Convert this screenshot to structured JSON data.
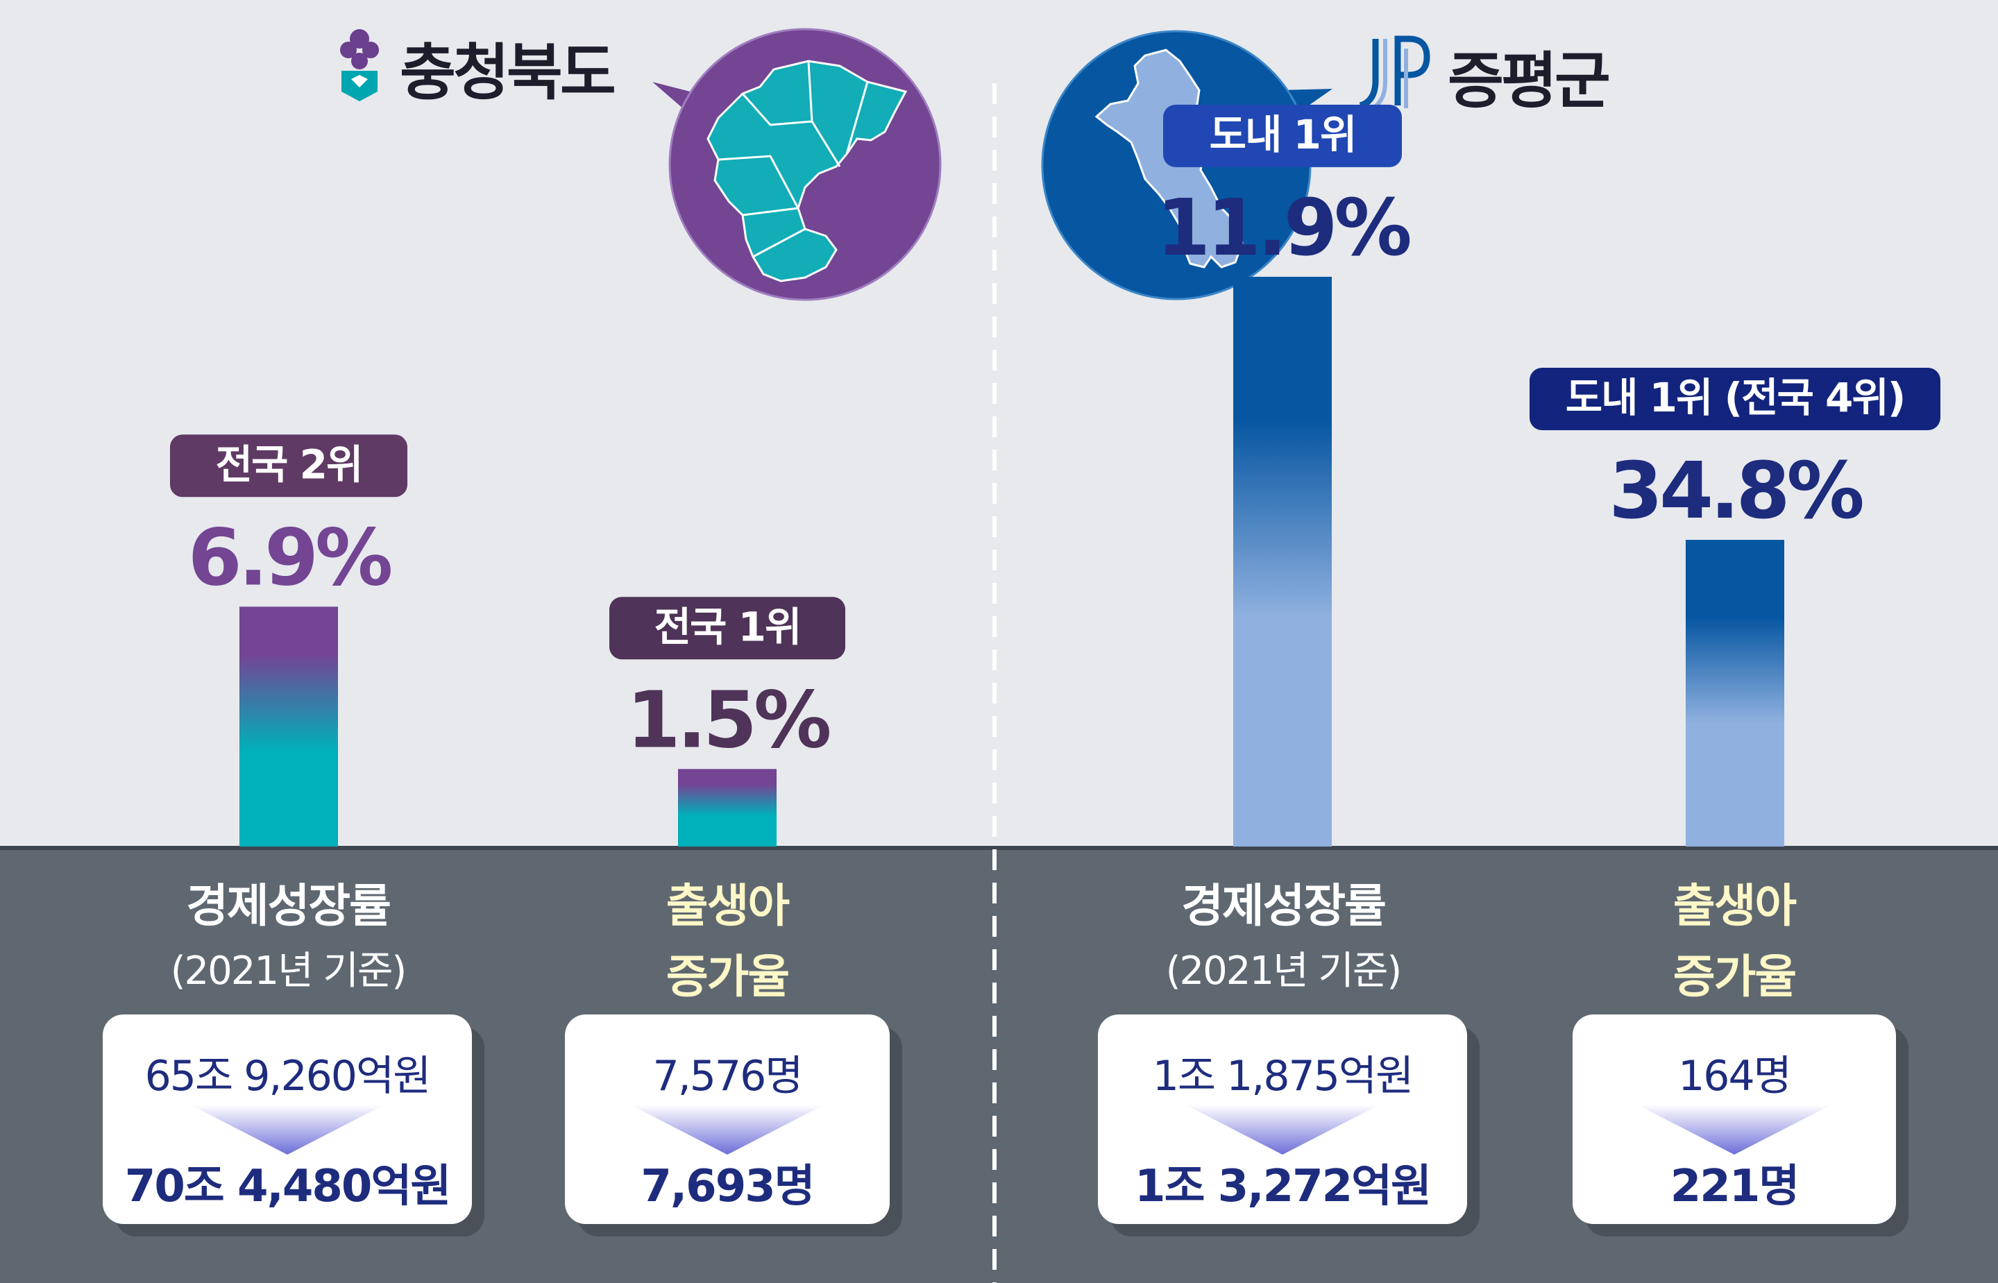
{
  "colors": {
    "background_top": "#e7e9ed",
    "background_bottom": "#5f6871",
    "chungbuk_purple": "#734593",
    "chungbuk_teal": "#00b0ba",
    "jp_navy": "#0656a1",
    "jp_light": "#90b1df",
    "text_dark": "#1e2c7e",
    "label_yellow": "#fef7c7"
  },
  "chart_data": [
    {
      "type": "bar",
      "title": "충청북도",
      "categories": [
        "경제성장률 (2021년 기준)",
        "출생아 증가율"
      ],
      "values": [
        6.9,
        1.5
      ],
      "value_labels": [
        "6.9%",
        "1.5%"
      ],
      "rank_badges": [
        "전국 2위",
        "전국 1위"
      ],
      "category_lines": [
        [
          "경제성장률",
          "(2021년 기준)"
        ],
        [
          "출생아",
          "증가율"
        ]
      ],
      "details": [
        {
          "before": "65조 9,260억원",
          "after": "70조 4,480억원"
        },
        {
          "before": "7,576명",
          "after": "7,693명"
        }
      ],
      "icon": "chungbuk-logo-icon",
      "map": "chungbuk-map-icon"
    },
    {
      "type": "bar",
      "title": "증평군",
      "categories": [
        "경제성장률 (2021년 기준)",
        "출생아 증가율"
      ],
      "values": [
        11.9,
        34.8
      ],
      "value_labels": [
        "11.9%",
        "34.8%"
      ],
      "rank_badges": [
        "도내 1위",
        "도내 1위 (전국 4위)"
      ],
      "category_lines": [
        [
          "경제성장률",
          "(2021년 기준)"
        ],
        [
          "출생아",
          "증가율"
        ]
      ],
      "details": [
        {
          "before": "1조 1,875억원",
          "after": "1조 3,272억원"
        },
        {
          "before": "164명",
          "after": "221명"
        }
      ],
      "icon": "jp-logo-icon",
      "map": "jeungpyeong-map-icon"
    }
  ]
}
